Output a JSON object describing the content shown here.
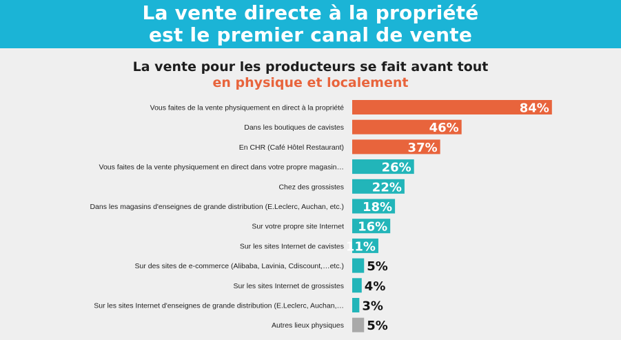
{
  "banner": {
    "line1": "La vente directe à la propriété",
    "line2": "est le premier canal de vente"
  },
  "colors": {
    "banner": "#1bb4d6",
    "accent": "#e8643c",
    "teal": "#22b5b9",
    "grey": "#a9a9a9"
  },
  "chart_data": {
    "type": "bar",
    "orientation": "horizontal",
    "title": "La vente pour les producteurs se fait avant tout",
    "subtitle": "en physique et localement",
    "categories": [
      "Vous faites de la vente physiquement en direct à la propriété",
      "Dans les boutiques de cavistes",
      "En CHR (Café Hôtel Restaurant)",
      "Vous faites de la vente physiquement en direct dans votre propre magasin…",
      "Chez des grossistes",
      "Dans les magasins d'enseignes de grande distribution (E.Leclerc, Auchan, etc.)",
      "Sur votre propre site Internet",
      "Sur les sites Internet de cavistes",
      "Sur des sites de e-commerce (Alibaba, Lavinia, Cdiscount,…etc.)",
      "Sur les sites Internet de grossistes",
      "Sur les sites Internet d'enseignes de grande distribution (E.Leclerc, Auchan,…",
      "Autres lieux physiques"
    ],
    "values": [
      84,
      46,
      37,
      26,
      22,
      18,
      16,
      11,
      5,
      4,
      3,
      5
    ],
    "value_labels": [
      "84%",
      "46%",
      "37%",
      "26%",
      "22%",
      "18%",
      "16%",
      "11%",
      "5%",
      "4%",
      "3%",
      "5%"
    ],
    "bar_colors": [
      "#e8643c",
      "#e8643c",
      "#e8643c",
      "#22b5b9",
      "#22b5b9",
      "#22b5b9",
      "#22b5b9",
      "#22b5b9",
      "#22b5b9",
      "#22b5b9",
      "#22b5b9",
      "#a9a9a9"
    ],
    "xlim": [
      0,
      100
    ],
    "grid": false,
    "legend": "none"
  }
}
